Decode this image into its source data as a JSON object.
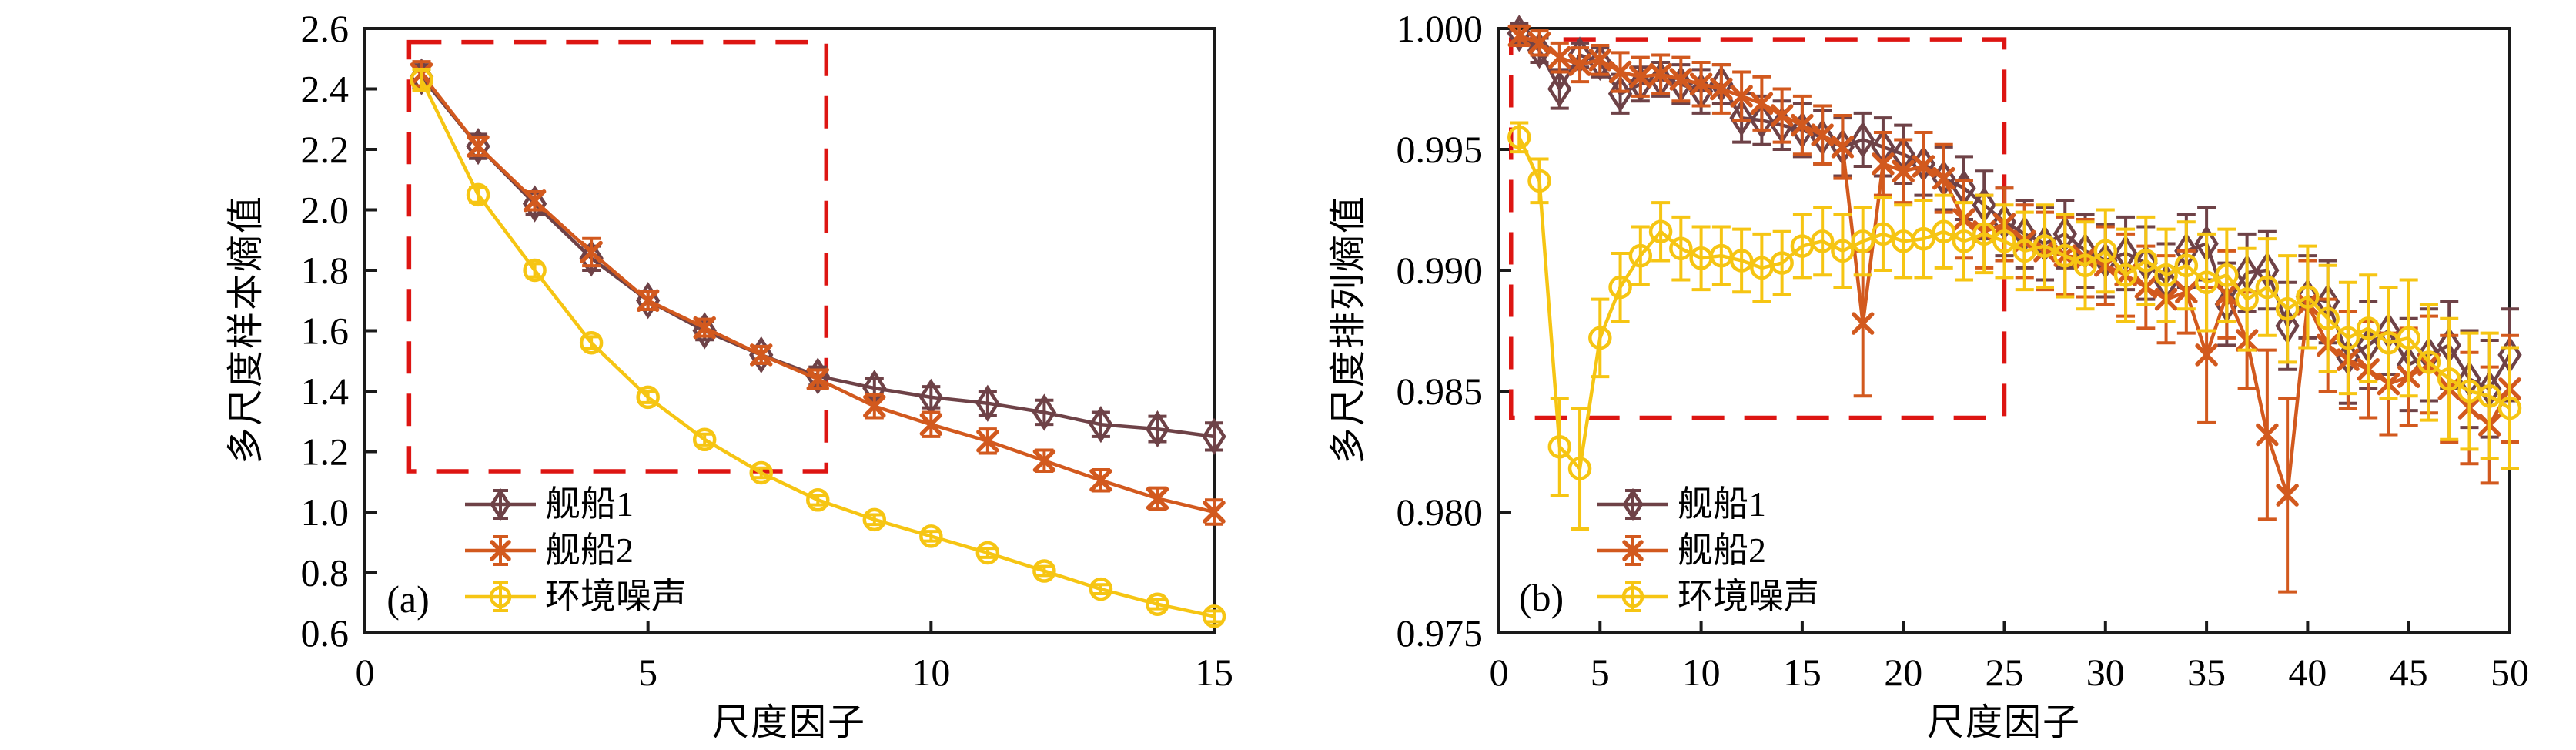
{
  "style": {
    "background": "#ffffff",
    "axis_color": "#1a1a1a",
    "tick_label_color": "#000000",
    "roi_color": "#dd1512"
  },
  "chart_data": [
    {
      "id": "a",
      "type": "line",
      "tag": "(a)",
      "title": "",
      "xlabel": "尺度因子",
      "ylabel": "多尺度样本熵值",
      "xlim": [
        0,
        15
      ],
      "ylim": [
        0.6,
        2.6
      ],
      "grid": false,
      "legend_position": "lower-left",
      "x_ticks": [
        0,
        5,
        10,
        15
      ],
      "x_tick_labels": [
        "0",
        "5",
        "10",
        "15"
      ],
      "y_ticks": [
        2.6,
        2.4,
        2.2,
        2.0,
        1.8,
        1.6,
        1.4,
        1.2,
        1.0,
        0.8,
        0.6
      ],
      "y_tick_labels": [
        "2.6",
        "2.4",
        "2.2",
        "2.0",
        "1.8",
        "1.6",
        "1.4",
        "1.2",
        "1.0",
        "0.8",
        "0.6"
      ],
      "roi_box": {
        "x0": 0.78,
        "x1": 8.15,
        "y0": 1.135,
        "y1": 2.555,
        "color": "#dd1512",
        "style": "dashed"
      },
      "series": [
        {
          "key": "ship1",
          "name": "舰船1",
          "marker": "diamond",
          "color": "#6e4247",
          "x": [
            1,
            2,
            3,
            4,
            5,
            6,
            7,
            8,
            9,
            10,
            11,
            12,
            13,
            14,
            15
          ],
          "y": [
            2.44,
            2.21,
            2.02,
            1.84,
            1.7,
            1.6,
            1.52,
            1.45,
            1.41,
            1.38,
            1.36,
            1.33,
            1.29,
            1.275,
            1.25
          ],
          "yerr": [
            0.04,
            0.04,
            0.035,
            0.04,
            0.03,
            0.03,
            0.028,
            0.03,
            0.032,
            0.035,
            0.04,
            0.04,
            0.04,
            0.042,
            0.045
          ]
        },
        {
          "key": "ship2",
          "name": "舰船2",
          "marker": "xmark",
          "color": "#d2591e",
          "x": [
            1,
            2,
            3,
            4,
            5,
            6,
            7,
            8,
            9,
            10,
            11,
            12,
            13,
            14,
            15
          ],
          "y": [
            2.45,
            2.21,
            2.03,
            1.86,
            1.7,
            1.61,
            1.52,
            1.44,
            1.35,
            1.29,
            1.235,
            1.17,
            1.105,
            1.045,
            1.0
          ],
          "yerr": [
            0.04,
            0.03,
            0.03,
            0.045,
            0.03,
            0.028,
            0.028,
            0.03,
            0.038,
            0.04,
            0.04,
            0.035,
            0.035,
            0.035,
            0.04
          ]
        },
        {
          "key": "noise",
          "name": "环境噪声",
          "marker": "circle",
          "color": "#f6c513",
          "x": [
            1,
            2,
            3,
            4,
            5,
            6,
            7,
            8,
            9,
            10,
            11,
            12,
            13,
            14,
            15
          ],
          "y": [
            2.43,
            2.05,
            1.8,
            1.56,
            1.38,
            1.24,
            1.13,
            1.04,
            0.975,
            0.92,
            0.865,
            0.805,
            0.745,
            0.695,
            0.655
          ],
          "yerr": [
            0.035,
            0.025,
            0.022,
            0.02,
            0.018,
            0.018,
            0.016,
            0.016,
            0.016,
            0.016,
            0.015,
            0.015,
            0.015,
            0.015,
            0.018
          ]
        }
      ]
    },
    {
      "id": "b",
      "type": "line",
      "tag": "(b)",
      "title": "",
      "xlabel": "尺度因子",
      "ylabel": "多尺度排列熵值",
      "xlim": [
        0,
        50
      ],
      "ylim": [
        0.975,
        1.0
      ],
      "grid": false,
      "legend_position": "lower-left",
      "x_ticks": [
        0,
        5,
        10,
        15,
        20,
        25,
        30,
        35,
        40,
        45,
        50
      ],
      "x_tick_labels": [
        "0",
        "5",
        "10",
        "15",
        "20",
        "25",
        "30",
        "35",
        "40",
        "45",
        "50"
      ],
      "y_ticks": [
        1.0,
        0.995,
        0.99,
        0.985,
        0.98,
        0.975
      ],
      "y_tick_labels": [
        "1.000",
        "0.995",
        "0.990",
        "0.985",
        "0.980",
        "0.975"
      ],
      "roi_box": {
        "x0": 0.6,
        "x1": 25.0,
        "y0": 0.9839,
        "y1": 0.99955,
        "color": "#dd1512",
        "style": "dashed"
      },
      "series": [
        {
          "key": "ship1",
          "name": "舰船1",
          "marker": "diamond",
          "color": "#6e4247",
          "x": [
            1,
            2,
            3,
            4,
            5,
            6,
            7,
            8,
            9,
            10,
            11,
            12,
            13,
            14,
            15,
            16,
            17,
            18,
            19,
            20,
            21,
            22,
            23,
            24,
            25,
            26,
            27,
            28,
            29,
            30,
            31,
            32,
            33,
            34,
            35,
            36,
            37,
            38,
            39,
            40,
            41,
            42,
            43,
            44,
            45,
            46,
            47,
            48,
            49,
            50
          ],
          "y": [
            0.9998,
            0.9991,
            0.9975,
            0.9989,
            0.9986,
            0.9973,
            0.9977,
            0.9979,
            0.9977,
            0.9974,
            0.9977,
            0.9963,
            0.9962,
            0.996,
            0.9958,
            0.9955,
            0.9951,
            0.9954,
            0.9951,
            0.9948,
            0.9944,
            0.9938,
            0.9934,
            0.9927,
            0.992,
            0.9915,
            0.9911,
            0.9915,
            0.9908,
            0.9904,
            0.9907,
            0.9903,
            0.9895,
            0.9908,
            0.9911,
            0.9886,
            0.9899,
            0.99,
            0.9877,
            0.9889,
            0.9887,
            0.9864,
            0.9869,
            0.9875,
            0.9861,
            0.9865,
            0.9869,
            0.9855,
            0.9851,
            0.9865
          ],
          "yerr": [
            0.0004,
            0.0005,
            0.0008,
            0.0005,
            0.0006,
            0.0008,
            0.0007,
            0.0007,
            0.0008,
            0.0009,
            0.0008,
            0.001,
            0.001,
            0.001,
            0.0011,
            0.0011,
            0.0012,
            0.0011,
            0.0012,
            0.0012,
            0.0013,
            0.0013,
            0.0013,
            0.0014,
            0.0014,
            0.0014,
            0.0015,
            0.0014,
            0.0015,
            0.0015,
            0.0015,
            0.0015,
            0.0016,
            0.0015,
            0.0015,
            0.0017,
            0.0016,
            0.0016,
            0.0018,
            0.0017,
            0.0017,
            0.0019,
            0.0018,
            0.0018,
            0.0019,
            0.0019,
            0.0018,
            0.002,
            0.002,
            0.0019
          ]
        },
        {
          "key": "ship2",
          "name": "舰船2",
          "marker": "xmark",
          "color": "#d2591e",
          "x": [
            1,
            2,
            3,
            4,
            5,
            6,
            7,
            8,
            9,
            10,
            11,
            12,
            13,
            14,
            15,
            16,
            17,
            18,
            19,
            20,
            21,
            22,
            23,
            24,
            25,
            26,
            27,
            28,
            29,
            30,
            31,
            32,
            33,
            34,
            35,
            36,
            37,
            38,
            39,
            40,
            41,
            42,
            43,
            44,
            45,
            46,
            47,
            48,
            49,
            50
          ],
          "y": [
            0.9997,
            0.9994,
            0.9988,
            0.9985,
            0.9987,
            0.9982,
            0.998,
            0.9981,
            0.9979,
            0.9977,
            0.9975,
            0.9972,
            0.9969,
            0.9964,
            0.996,
            0.9956,
            0.9951,
            0.9878,
            0.9944,
            0.9941,
            0.9943,
            0.9938,
            0.9921,
            0.9916,
            0.9919,
            0.9912,
            0.9908,
            0.9906,
            0.9905,
            0.9902,
            0.9898,
            0.9893,
            0.9888,
            0.9891,
            0.9865,
            0.989,
            0.9871,
            0.9832,
            0.9807,
            0.9886,
            0.9869,
            0.9863,
            0.9859,
            0.9853,
            0.9856,
            0.9861,
            0.9851,
            0.9843,
            0.9836,
            0.9851
          ],
          "yerr": [
            0.0004,
            0.0005,
            0.0006,
            0.0007,
            0.0006,
            0.0008,
            0.0008,
            0.0008,
            0.0009,
            0.0009,
            0.001,
            0.001,
            0.0011,
            0.0011,
            0.0012,
            0.0012,
            0.0013,
            0.003,
            0.0013,
            0.0013,
            0.0014,
            0.0014,
            0.0016,
            0.0015,
            0.0015,
            0.0015,
            0.0016,
            0.0016,
            0.0016,
            0.0016,
            0.0017,
            0.0017,
            0.0018,
            0.0017,
            0.0028,
            0.0018,
            0.002,
            0.0035,
            0.004,
            0.0018,
            0.0019,
            0.002,
            0.002,
            0.0021,
            0.002,
            0.002,
            0.0022,
            0.0023,
            0.0024,
            0.0022
          ]
        },
        {
          "key": "noise",
          "name": "环境噪声",
          "marker": "circle",
          "color": "#f6c513",
          "x": [
            1,
            2,
            3,
            4,
            5,
            6,
            7,
            8,
            9,
            10,
            11,
            12,
            13,
            14,
            15,
            16,
            17,
            18,
            19,
            20,
            21,
            22,
            23,
            24,
            25,
            26,
            27,
            28,
            29,
            30,
            31,
            32,
            33,
            34,
            35,
            36,
            37,
            38,
            39,
            40,
            41,
            42,
            43,
            44,
            45,
            46,
            47,
            48,
            49,
            50
          ],
          "y": [
            0.9955,
            0.9937,
            0.9827,
            0.9818,
            0.9872,
            0.9893,
            0.9906,
            0.9916,
            0.9909,
            0.9905,
            0.9906,
            0.9904,
            0.9901,
            0.9903,
            0.991,
            0.9912,
            0.9908,
            0.9912,
            0.9915,
            0.9912,
            0.9913,
            0.9916,
            0.9912,
            0.9915,
            0.9912,
            0.9908,
            0.991,
            0.9906,
            0.9902,
            0.9908,
            0.9898,
            0.9904,
            0.9898,
            0.9902,
            0.9895,
            0.9898,
            0.9888,
            0.9893,
            0.9884,
            0.9889,
            0.988,
            0.9872,
            0.9876,
            0.987,
            0.9872,
            0.9862,
            0.9855,
            0.985,
            0.9848,
            0.9843
          ],
          "yerr": [
            0.0006,
            0.0009,
            0.002,
            0.0025,
            0.0016,
            0.0014,
            0.0012,
            0.0012,
            0.0013,
            0.0013,
            0.0012,
            0.0013,
            0.0014,
            0.0013,
            0.0013,
            0.0014,
            0.0015,
            0.0014,
            0.0015,
            0.0015,
            0.0016,
            0.0015,
            0.0016,
            0.0016,
            0.0015,
            0.0016,
            0.0017,
            0.0017,
            0.0018,
            0.0017,
            0.0019,
            0.0018,
            0.0019,
            0.0018,
            0.002,
            0.0019,
            0.0021,
            0.002,
            0.0022,
            0.0021,
            0.0022,
            0.0023,
            0.0022,
            0.0023,
            0.0024,
            0.0024,
            0.0025,
            0.0024,
            0.0026,
            0.0025
          ]
        }
      ]
    }
  ]
}
